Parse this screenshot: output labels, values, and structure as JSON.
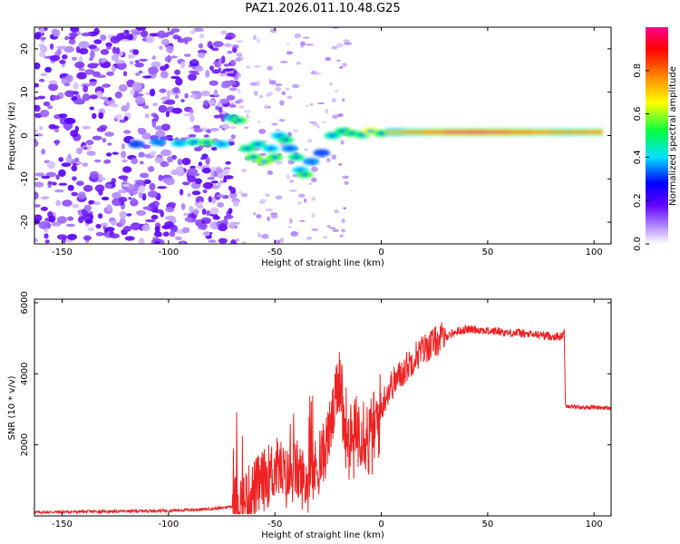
{
  "title": "PAZ1.2026.011.10.48.G25",
  "chart_data": [
    {
      "type": "heatmap",
      "xlabel": "Height of straight line (km)",
      "ylabel": "Frequency (Hz)",
      "xlim": [
        -163,
        108
      ],
      "ylim": [
        -25,
        25
      ],
      "xticks": [
        -150,
        -100,
        -50,
        0,
        50,
        100
      ],
      "yticks": [
        -20,
        -10,
        0,
        10,
        20
      ],
      "colorbar": {
        "label": "Normalized spectral amplitude",
        "range": [
          0,
          1
        ],
        "ticks": [
          0.0,
          0.2,
          0.4,
          0.6,
          0.8
        ],
        "colormap": [
          "#ffffff",
          "#b48cff",
          "#6000ff",
          "#0000ff",
          "#00e0ff",
          "#00ff40",
          "#ffff00",
          "#ff8000",
          "#ff0000",
          "#ff0090"
        ]
      },
      "blobs": [
        {
          "x": -115,
          "f": -2,
          "a": 0.3
        },
        {
          "x": -105,
          "f": -1.5,
          "a": 0.35
        },
        {
          "x": -95,
          "f": -1.8,
          "a": 0.4
        },
        {
          "x": -88,
          "f": -1.5,
          "a": 0.45
        },
        {
          "x": -82,
          "f": -1.6,
          "a": 0.55
        },
        {
          "x": -75,
          "f": -2.0,
          "a": 0.4
        },
        {
          "x": -70,
          "f": 4.0,
          "a": 0.45
        },
        {
          "x": -67,
          "f": 3.5,
          "a": 0.55
        },
        {
          "x": -63,
          "f": -3.0,
          "a": 0.5
        },
        {
          "x": -60,
          "f": -5.0,
          "a": 0.55
        },
        {
          "x": -58,
          "f": -2.0,
          "a": 0.45
        },
        {
          "x": -55,
          "f": -6.0,
          "a": 0.6
        },
        {
          "x": -52,
          "f": -3.0,
          "a": 0.4
        },
        {
          "x": -50,
          "f": -5.0,
          "a": 0.55
        },
        {
          "x": -48,
          "f": 0.0,
          "a": 0.4
        },
        {
          "x": -45,
          "f": -1.0,
          "a": 0.5
        },
        {
          "x": -43,
          "f": -3.0,
          "a": 0.35
        },
        {
          "x": -40,
          "f": -5.0,
          "a": 0.5
        },
        {
          "x": -38,
          "f": -8.0,
          "a": 0.4
        },
        {
          "x": -36,
          "f": -9.0,
          "a": 0.55
        },
        {
          "x": -33,
          "f": -6.0,
          "a": 0.35
        },
        {
          "x": -28,
          "f": -4.0,
          "a": 0.3
        },
        {
          "x": -23,
          "f": 0.0,
          "a": 0.45
        },
        {
          "x": -18,
          "f": 1.0,
          "a": 0.5
        },
        {
          "x": -14,
          "f": 0.5,
          "a": 0.55
        },
        {
          "x": -9,
          "f": 0.2,
          "a": 0.5
        },
        {
          "x": -5,
          "f": 1.0,
          "a": 0.65
        },
        {
          "x": 0,
          "f": 0.5,
          "a": 0.55
        }
      ],
      "band": [
        {
          "x": 2,
          "a": 0.55
        },
        {
          "x": 10,
          "a": 0.7
        },
        {
          "x": 20,
          "a": 0.75
        },
        {
          "x": 30,
          "a": 0.85
        },
        {
          "x": 40,
          "a": 0.95
        },
        {
          "x": 50,
          "a": 0.9
        },
        {
          "x": 60,
          "a": 0.85
        },
        {
          "x": 70,
          "a": 0.8
        },
        {
          "x": 80,
          "a": 0.75
        },
        {
          "x": 90,
          "a": 0.7
        },
        {
          "x": 98,
          "a": 0.8
        },
        {
          "x": 104,
          "a": 0.75
        }
      ]
    },
    {
      "type": "line",
      "xlabel": "Height of straight line (km)",
      "ylabel": "SNR (10 * v/v)",
      "xlim": [
        -163,
        108
      ],
      "ylim": [
        0,
        6100
      ],
      "xticks": [
        -150,
        -100,
        -50,
        0,
        50,
        100
      ],
      "yticks": [
        2000,
        4000,
        6000
      ],
      "color": "#ee2222",
      "series": [
        {
          "name": "SNR",
          "x": [
            -163,
            -140,
            -120,
            -100,
            -85,
            -75,
            -68,
            -63,
            -57,
            -52,
            -48,
            -45,
            -40,
            -35,
            -32,
            -28,
            -25,
            -22,
            -20,
            -19,
            -18,
            -16,
            -14,
            -12,
            -10,
            -8,
            -6,
            -4,
            -2,
            0,
            2,
            5,
            8,
            12,
            16,
            20,
            24,
            28,
            32,
            36,
            40,
            45,
            50,
            55,
            60,
            65,
            70,
            75,
            80,
            85,
            86,
            86.5,
            87,
            90,
            95,
            100,
            105,
            108
          ],
          "y": [
            100,
            120,
            130,
            150,
            180,
            220,
            300,
            500,
            900,
            1200,
            1400,
            1000,
            1300,
            900,
            1200,
            1600,
            2200,
            3000,
            3800,
            4200,
            2700,
            2400,
            2000,
            2200,
            2600,
            2500,
            2100,
            2300,
            2600,
            3000,
            3400,
            3700,
            3900,
            4200,
            4500,
            4700,
            4850,
            5000,
            5100,
            5200,
            5250,
            5250,
            5200,
            5200,
            5150,
            5150,
            5100,
            5100,
            5050,
            5050,
            5200,
            3200,
            3100,
            3080,
            3050,
            3060,
            3040,
            3030
          ]
        }
      ]
    }
  ]
}
